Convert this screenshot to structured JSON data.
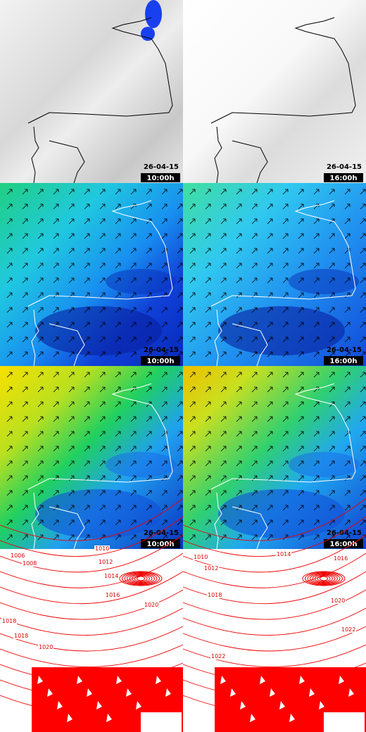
{
  "panels": [
    {
      "date": "26-04-15",
      "time": "10:00h"
    },
    {
      "date": "26-04-15",
      "time": "16:00h"
    },
    {
      "date": "26-04-15",
      "time": "10:00h"
    },
    {
      "date": "26-04-15",
      "time": "16:00h"
    },
    {
      "date": "26-04-15",
      "time": "10:00h"
    },
    {
      "date": "26-04-15",
      "time": "16:00h"
    }
  ],
  "pressure": [
    {
      "labels": [
        "1006",
        "1008",
        "1010",
        "1012",
        "1014",
        "1016",
        "1018",
        "1018",
        "1020",
        "1020"
      ]
    },
    {
      "labels": [
        "1010",
        "1012",
        "1014",
        "1016",
        "1018",
        "1020",
        "1022",
        "1022"
      ]
    }
  ]
}
